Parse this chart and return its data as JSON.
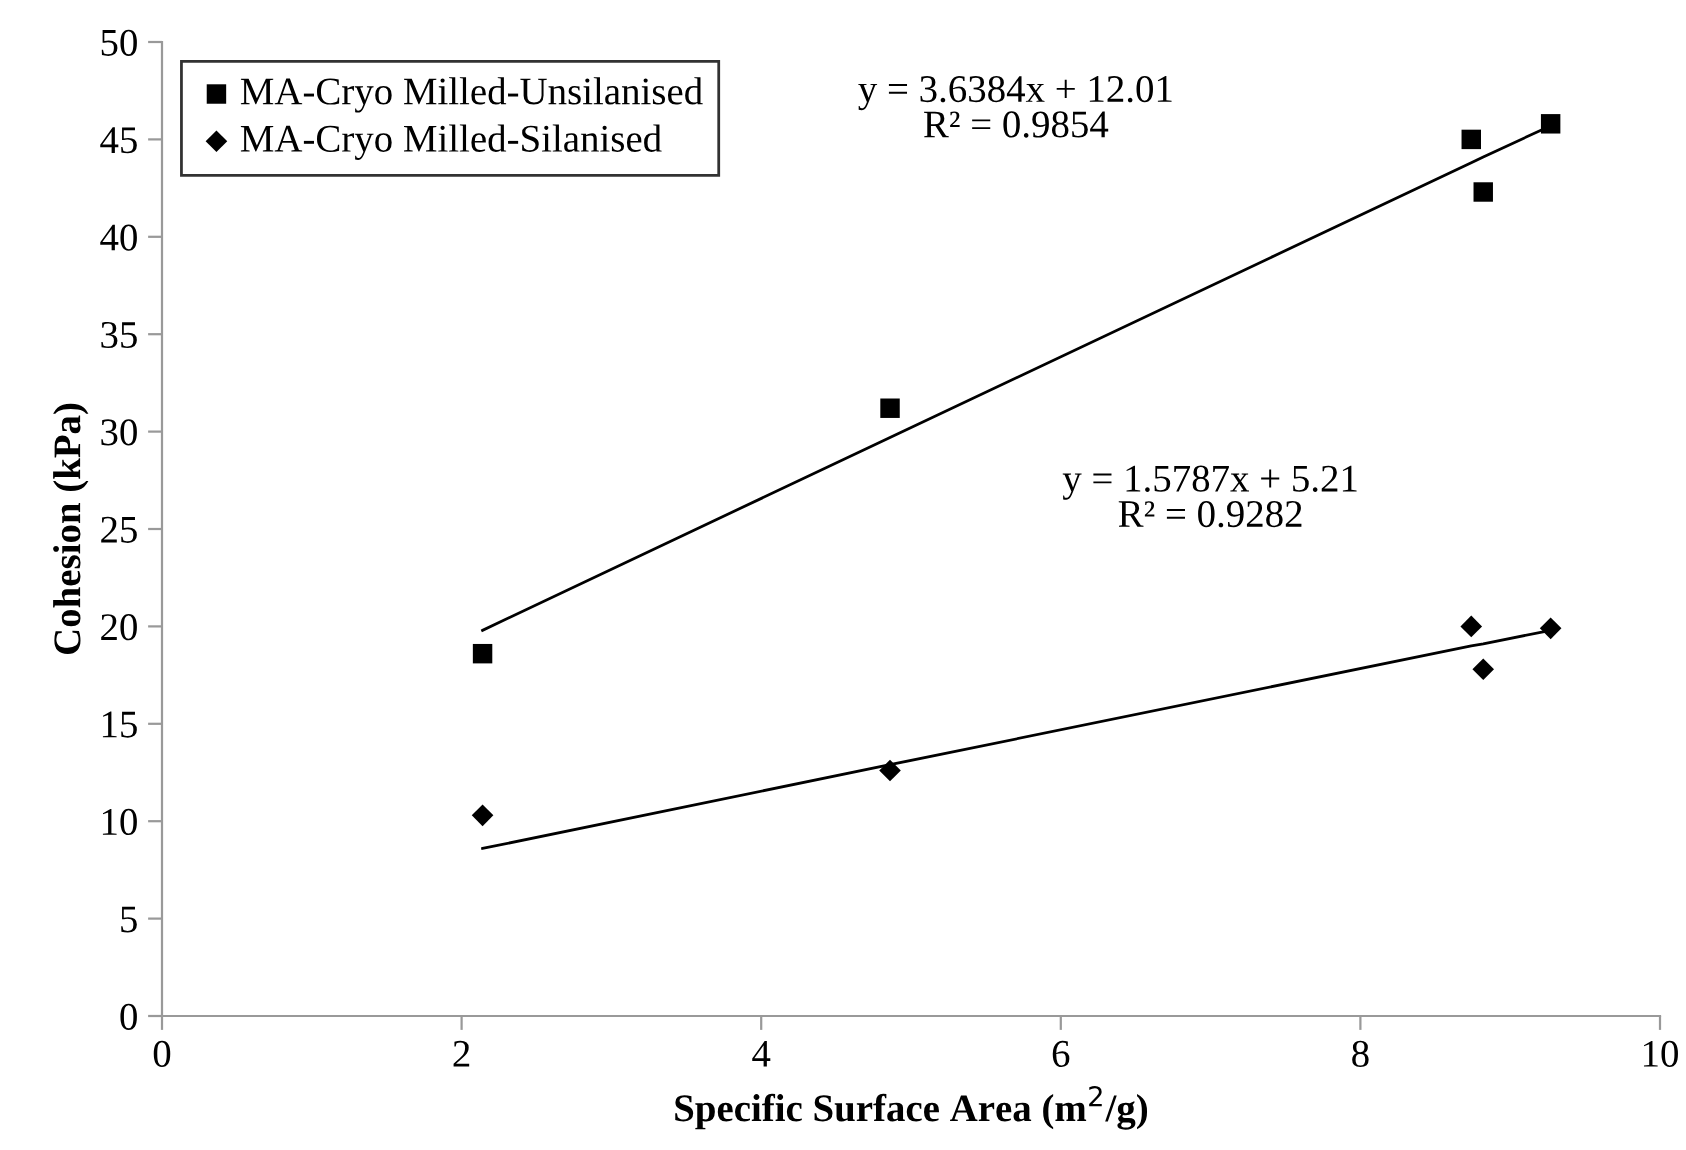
{
  "chart_data": {
    "type": "scatter",
    "xlabel": "Specific Surface Area (m$^{2}$/g)",
    "ylabel": "Cohesion (kPa)",
    "x": [
      2.14,
      4.86,
      8.74,
      8.82,
      9.27
    ],
    "series": [
      {
        "name": "MA-Cryo Milled-Unsilanised",
        "color": "#000000",
        "marker": "square",
        "values": [
          18.6,
          31.2,
          45.0,
          42.3,
          45.8
        ]
      },
      {
        "name": "MA-Cryo Milled-Silanised",
        "color": "#000000",
        "marker": "diamond",
        "values": [
          10.3,
          12.6,
          20.0,
          17.8,
          19.9
        ]
      },
      {
        "type": "line",
        "color": "#000000",
        "values": [
          19.8,
          29.7,
          43.8,
          44.1,
          45.7
        ]
      },
      {
        "type": "line",
        "color": "#000000",
        "values": [
          8.6,
          12.9,
          19.0,
          19.1,
          19.8
        ]
      }
    ],
    "annotations": [
      "y = 3.6384x + 12.01\nR² = 0.9854",
      "y = 1.5787x + 5.21\nR² = 0.9282"
    ],
    "xlim": [
      0,
      10
    ],
    "xticks": [
      0,
      2,
      4,
      6,
      8,
      10
    ],
    "ylim": [
      0,
      50
    ],
    "yticks": [
      0,
      5,
      10,
      15,
      20,
      25,
      30,
      35,
      40,
      45,
      50
    ],
    "grid": false,
    "legend": "top left"
  }
}
